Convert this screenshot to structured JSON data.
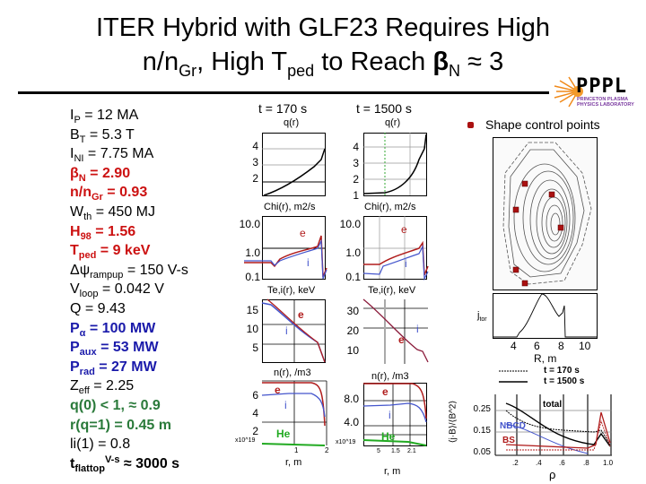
{
  "title": {
    "line1": "ITER Hybrid with GLF23 Requires High",
    "line2_a": "n/n",
    "line2_sub1": "Gr",
    "line2_b": ", High T",
    "line2_sub2": "ped",
    "line2_c": " to Reach ",
    "line2_beta": "β",
    "line2_sub3": "N",
    "line2_d": " ≈ 3"
  },
  "params": [
    {
      "base": "I",
      "sub": "P",
      "sup": "",
      "rest": " = 12 MA",
      "color": "#000000",
      "bold": false
    },
    {
      "base": "B",
      "sub": "T",
      "sup": "",
      "rest": " = 5.3 T",
      "color": "#000000",
      "bold": false
    },
    {
      "base": "I",
      "sub": "NI",
      "sup": "",
      "rest": " = 7.75 MA",
      "color": "#000000",
      "bold": false
    },
    {
      "base": "β",
      "sub": "N",
      "sup": "",
      "rest": " = 2.90",
      "color": "#cc1111",
      "bold": true
    },
    {
      "base": "n/n",
      "sub": "Gr",
      "sup": "",
      "rest": " = 0.93",
      "color": "#cc1111",
      "bold": true
    },
    {
      "base": "W",
      "sub": "th",
      "sup": "",
      "rest": " = 450 MJ",
      "color": "#000000",
      "bold": false
    },
    {
      "base": "H",
      "sub": "98",
      "sup": "",
      "rest": " = 1.56",
      "color": "#cc1111",
      "bold": true
    },
    {
      "base": "T",
      "sub": "ped",
      "sup": "",
      "rest": " = 9 keV",
      "color": "#cc1111",
      "bold": true
    },
    {
      "base": "Δψ",
      "sub": "rampup",
      "sup": "",
      "rest": " = 150 V-s",
      "color": "#000000",
      "bold": false
    },
    {
      "base": "V",
      "sub": "loop",
      "sup": "",
      "rest": " = 0.042 V",
      "color": "#000000",
      "bold": false
    },
    {
      "base": "Q = 9.43",
      "sub": "",
      "sup": "",
      "rest": "",
      "color": "#000000",
      "bold": false
    },
    {
      "base": "P",
      "sub": "α",
      "sup": "",
      "rest": " = 100 MW",
      "color": "#1a1aaa",
      "bold": true
    },
    {
      "base": "P",
      "sub": "aux",
      "sup": "",
      "rest": " = 53 MW",
      "color": "#1a1aaa",
      "bold": true
    },
    {
      "base": "P",
      "sub": "rad",
      "sup": "",
      "rest": " = 27 MW",
      "color": "#1a1aaa",
      "bold": true
    },
    {
      "base": "Z",
      "sub": "eff",
      "sup": "",
      "rest": " = 2.25",
      "color": "#000000",
      "bold": false
    },
    {
      "base": "q(0) < 1, ≈ 0.9",
      "sub": "",
      "sup": "",
      "rest": "",
      "color": "#2a7a3a",
      "bold": true
    },
    {
      "base": "r(q=1) = 0.45 m",
      "sub": "",
      "sup": "",
      "rest": "",
      "color": "#2a7a3a",
      "bold": true
    },
    {
      "base": "li(1) = 0.8",
      "sub": "",
      "sup": "",
      "rest": "",
      "color": "#000000",
      "bold": false
    },
    {
      "base": "t",
      "sub": "flattop",
      "sup": "V-s",
      "rest": " ≈ 3000 s",
      "color": "#000000",
      "bold": true
    }
  ],
  "columns": {
    "t1": "t = 170 s",
    "t2": "t = 1500 s"
  },
  "plots": {
    "q_title": "q(r)",
    "chi_title": "Chi(r), m2/s",
    "te_title": "Te,i(r), keV",
    "n_title": "n(r), /m3",
    "q_ticks1": [
      "4",
      "3",
      "2"
    ],
    "q_ticks2": [
      "4",
      "3",
      "2",
      "1"
    ],
    "chi_ticks": [
      "10.0",
      "1.0",
      "0.1"
    ],
    "te_ticks1": [
      "15",
      "10",
      "5"
    ],
    "te_ticks2": [
      "30",
      "20",
      "10"
    ],
    "n_ticks1": [
      "6",
      "4",
      "2"
    ],
    "n_ticks2": [
      "8.0",
      "4.0"
    ],
    "e": "e",
    "i": "i",
    "he": "He",
    "scale": "x10^19",
    "xlabel": "r, m",
    "rticks1": [
      "1",
      "2"
    ],
    "rticks2": [
      "5",
      "1.5",
      "2.1"
    ]
  },
  "right": {
    "legend_marker": "Shape control points",
    "jtor": "j",
    "jtor_sub": "tor",
    "R_ticks": [
      "4",
      "6",
      "8",
      "10"
    ],
    "R_label": "R, m",
    "leg1": "t = 170 s",
    "leg2": "t = 1500 s",
    "ylabel": "⟨j·B⟩/⟨B^2⟩",
    "yticks": [
      "0.25",
      "0.15",
      "0.05"
    ],
    "total": "total",
    "nbcd": "NBCD",
    "bs": "BS",
    "xticks": [
      ".2",
      ".4",
      ".6",
      ".8",
      "1.0"
    ],
    "xlabel": "ρ"
  },
  "logo": {
    "text": "PPPL",
    "sub1": "PRINCETON PLASMA",
    "sub2": "PHYSICS LABORATORY"
  },
  "colors": {
    "electron": "#b01c1c",
    "ion": "#4455cc",
    "helium": "#22aa22",
    "marker": "#aa1111",
    "logo_text": "#000000",
    "logo_sub": "#7a3aa0",
    "logo_sun": "#f08a1a"
  }
}
